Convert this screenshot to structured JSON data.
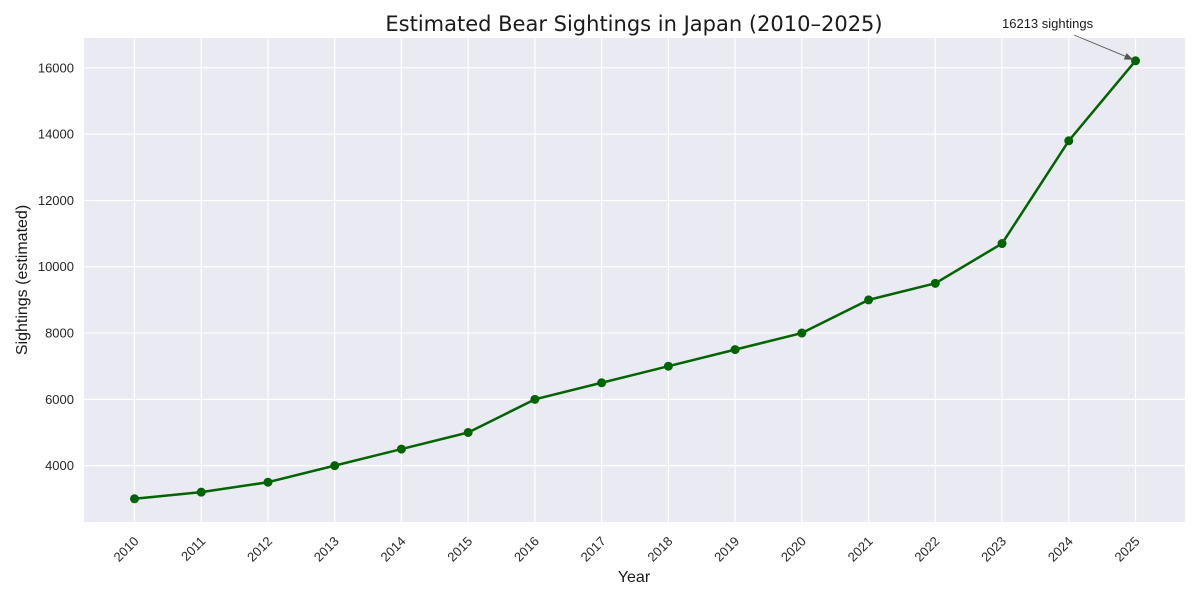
{
  "chart_data": {
    "type": "line",
    "title": "Estimated Bear Sightings in Japan (2010–2025)",
    "xlabel": "Year",
    "ylabel": "Sightings (estimated)",
    "x": [
      "2010",
      "2011",
      "2012",
      "2013",
      "2014",
      "2015",
      "2016",
      "2017",
      "2018",
      "2019",
      "2020",
      "2021",
      "2022",
      "2023",
      "2024",
      "2025"
    ],
    "series": [
      {
        "values": [
          3000,
          3200,
          3500,
          4000,
          4500,
          5000,
          6000,
          6500,
          7000,
          7500,
          8000,
          9000,
          9500,
          10700,
          13800,
          16213
        ],
        "color": "#006400",
        "marker": "circle"
      }
    ],
    "ylim": [
      2300,
      16900
    ],
    "yticks": [
      4000,
      6000,
      8000,
      10000,
      12000,
      14000,
      16000
    ],
    "grid": true,
    "background_color": "#eaeaf2",
    "annotation": {
      "text": "16213 sightings",
      "target_x": "2025",
      "target_y": 16213
    }
  }
}
